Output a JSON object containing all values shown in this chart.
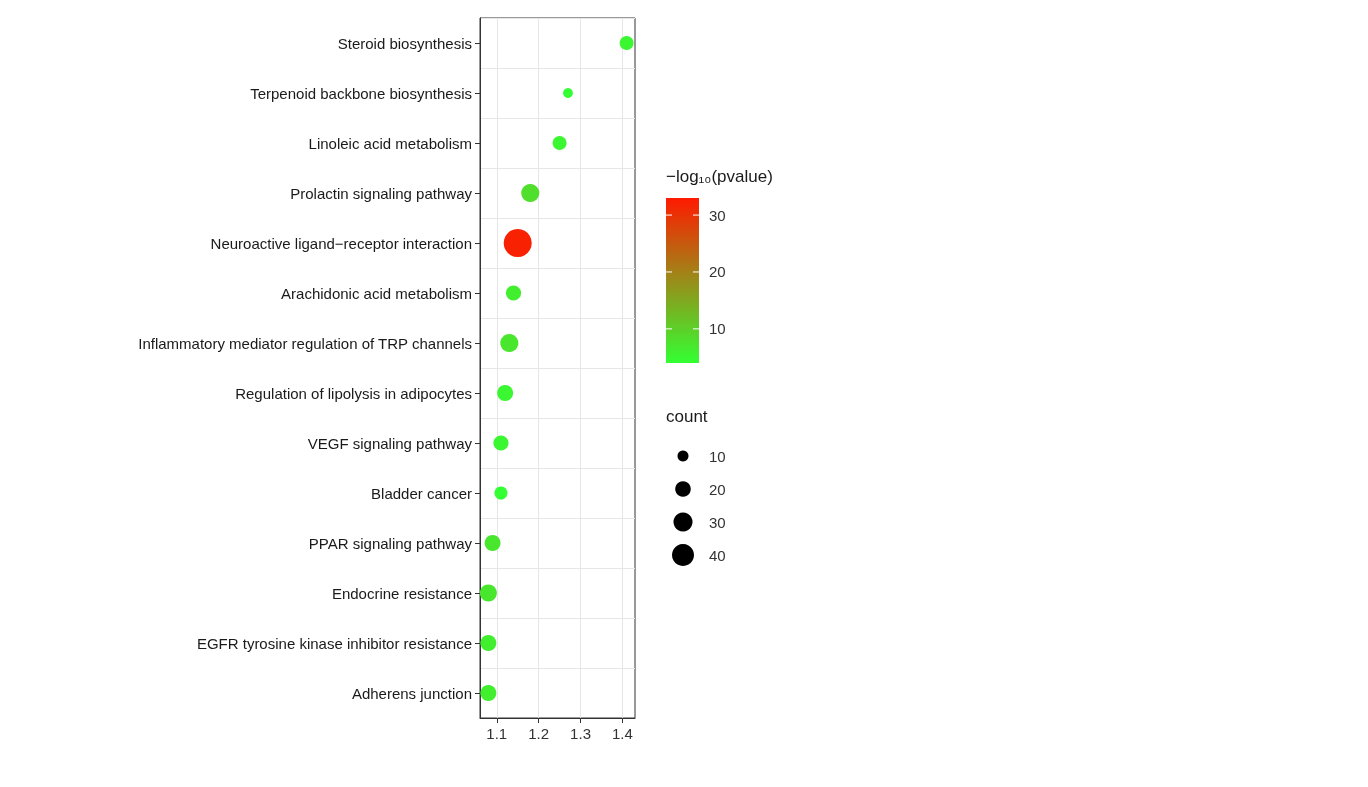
{
  "chart_data": {
    "type": "bubble",
    "categories": [
      "Steroid biosynthesis",
      "Terpenoid backbone biosynthesis",
      "Linoleic acid metabolism",
      "Prolactin signaling pathway",
      "Neuroactive ligand−receptor interaction",
      "Arachidonic acid metabolism",
      "Inflammatory mediator regulation of TRP channels",
      "Regulation of lipolysis in adipocytes",
      "VEGF signaling pathway",
      "Bladder cancer",
      "PPAR signaling pathway",
      "Endocrine resistance",
      "EGFR tyrosine kinase inhibitor resistance",
      "Adherens junction"
    ],
    "orientation": "horizontal",
    "values": [
      1.41,
      1.27,
      1.25,
      1.18,
      1.15,
      1.14,
      1.13,
      1.12,
      1.11,
      1.11,
      1.09,
      1.08,
      1.08,
      1.08
    ],
    "sizes": [
      16,
      8,
      16,
      27,
      65,
      19,
      27,
      21,
      19,
      14,
      21,
      24,
      21,
      21
    ],
    "cvalues": [
      5,
      4,
      5,
      8,
      32,
      6,
      7,
      5,
      5,
      4,
      7,
      7,
      6,
      6
    ],
    "clim": [
      4,
      33
    ],
    "cticks": [
      10,
      20,
      30
    ],
    "clabel": "−log₁₀(pvalue)",
    "size_legend": [
      10,
      20,
      30,
      40
    ],
    "legend_title": "count",
    "xlim": [
      1.06,
      1.43
    ],
    "xticks": [
      1.1,
      1.2,
      1.3,
      1.4
    ],
    "grid": true
  }
}
